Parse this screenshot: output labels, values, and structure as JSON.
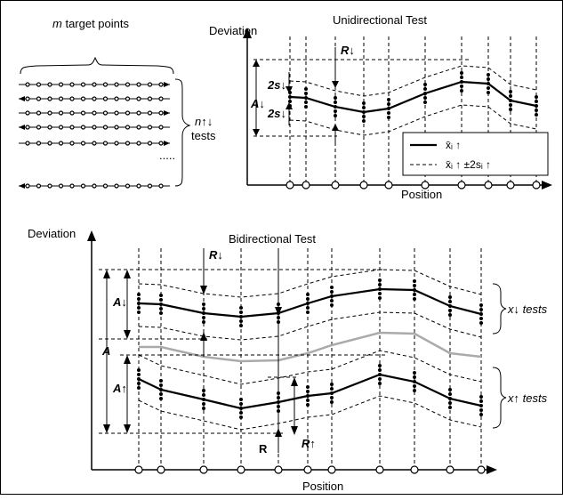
{
  "left_panel": {
    "title_prefix": "m",
    "title_rest": " target points",
    "tests_prefix": "n↑↓",
    "tests_label": "tests",
    "ellipsis": "....."
  },
  "uni": {
    "title": "Unidirectional Test",
    "ylabel": "Deviation",
    "xlabel": "Position",
    "label_R": "R↓",
    "label_A": "A↓",
    "label_2s_top": "2s↓",
    "label_2s_bottom": "2s↓",
    "legend_mean": "x̄ᵢ ↑",
    "legend_band": "x̄ᵢ ↑ ±2sᵢ ↑"
  },
  "bi": {
    "title": "Bidirectional Test",
    "ylabel": "Deviation",
    "xlabel": "Position",
    "label_R_down": "R↓",
    "label_A_down": "A↓",
    "label_A": "A",
    "label_A_up": "A↑",
    "label_R": "R",
    "label_R_up": "R↑",
    "label_x_down_tests": "x↓ tests",
    "label_x_up_tests": "x↑ tests"
  },
  "colors": {
    "line": "#000000",
    "mean_gray": "#aaaaaa",
    "background": "#ffffff"
  }
}
